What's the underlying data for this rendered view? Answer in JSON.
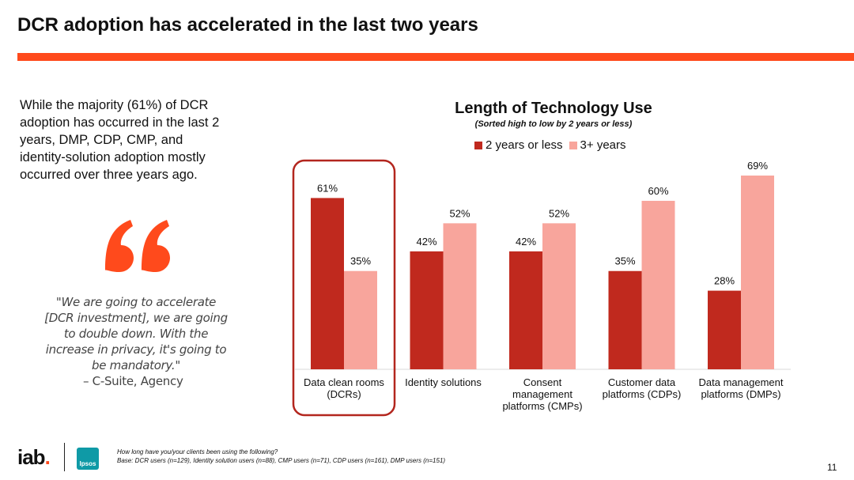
{
  "page": {
    "title": "DCR adoption has accelerated in the last two years",
    "accent_color": "#ff4a1c",
    "intro": "While the majority (61%) of DCR adoption has occurred in the last 2 years, DMP, CDP, CMP, and identity-solution adoption mostly occurred over three years ago.",
    "quote": "\"We are going to accelerate [DCR investment], we are going to double down. With the increase in privacy, it's going to be mandatory.\"",
    "quote_attribution": "– C-Suite, Agency",
    "footnote_question": "How long have you/your clients been using the following?",
    "footnote_base": "Base: DCR users (n=129), Identity solution users (n=88), CMP users (n=71), CDP users (n=161), DMP users (n=151)",
    "page_number": "11",
    "logos": {
      "iab_text": "iab",
      "iab_dot": ".",
      "ipsos_text": "Ipsos"
    }
  },
  "chart_data": {
    "type": "bar",
    "title": "Length of Technology Use",
    "subtitle": "(Sorted high to low by 2 years or less)",
    "categories": [
      [
        "Data clean rooms",
        "(DCRs)"
      ],
      [
        "Identity solutions"
      ],
      [
        "Consent",
        "management",
        "platforms (CMPs)"
      ],
      [
        "Customer data",
        "platforms (CDPs)"
      ],
      [
        "Data management",
        "platforms (DMPs)"
      ]
    ],
    "series": [
      {
        "name": "2 years or less",
        "color": "#c0291e",
        "values": [
          61,
          42,
          42,
          35,
          28
        ]
      },
      {
        "name": "3+ years",
        "color": "#f8a59c",
        "values": [
          35,
          52,
          52,
          60,
          69
        ]
      }
    ],
    "value_suffix": "%",
    "ylim": [
      0,
      75
    ],
    "grid": false,
    "legend": "top",
    "highlight_category": 0,
    "highlight_color": "#b3261e"
  }
}
